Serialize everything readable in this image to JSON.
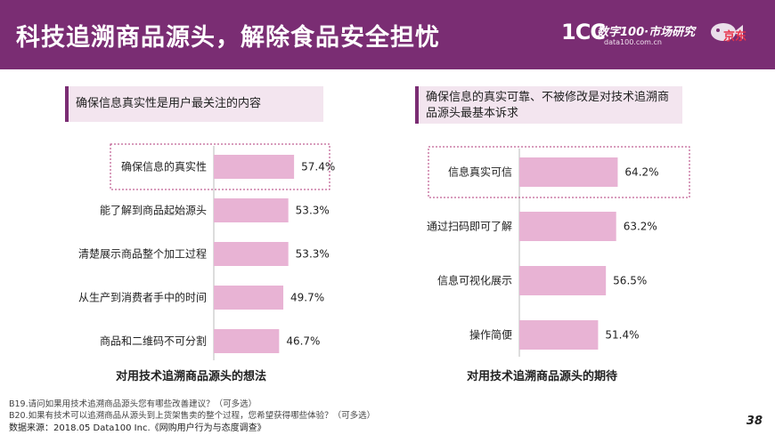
{
  "header": {
    "title": "科技追溯商品源头，解除食品安全担忧",
    "brand_logo": "1CC",
    "brand_name": "数字100·市场研究",
    "brand_url": "data100.com.cn",
    "brand_sub": "京东"
  },
  "colors": {
    "header_bg": "#7a2d73",
    "bar": "#e8b3d4",
    "callout_bg": "#f3e5ef",
    "highlight_border": "#b0397a"
  },
  "left_panel": {
    "callout": "确保信息真实性是用户最关注的内容"
  },
  "right_panel": {
    "callout": "确保信息的真实可靠、不被修改是对技术追溯商品源头最基本诉求"
  },
  "chart_data": [
    {
      "type": "bar",
      "orientation": "horizontal",
      "title": "对用技术追溯商品源头的想法",
      "categories": [
        "确保信息的真实性",
        "能了解到商品起始源头",
        "清楚展示商品整个加工过程",
        "从生产到消费者手中的时间",
        "商品和二维码不可分割"
      ],
      "values": [
        57.4,
        53.3,
        53.3,
        49.7,
        46.7
      ],
      "labels": [
        "57.4%",
        "53.3%",
        "53.3%",
        "49.7%",
        "46.7%"
      ],
      "unit": "%",
      "highlighted_index": 0
    },
    {
      "type": "bar",
      "orientation": "horizontal",
      "title": "对用技术追溯商品源头的期待",
      "categories": [
        "信息真实可信",
        "通过扫码即可了解",
        "信息可视化展示",
        "操作简便"
      ],
      "values": [
        64.2,
        63.2,
        56.5,
        51.4
      ],
      "labels": [
        "64.2%",
        "63.2%",
        "56.5%",
        "51.4%"
      ],
      "unit": "%",
      "highlighted_index": 0
    }
  ],
  "footer": {
    "note1": "B19.请问如果用技术追溯商品源头您有哪些改善建议？（可多选）",
    "note2": "B20.如果有技术可以追溯商品从源头到上货架售卖的整个过程，您希望获得哪些体验？（可多选）",
    "source": "数据来源：2018.05 Data100 Inc.《网购用户行为与态度调查》",
    "page_number": "38"
  }
}
